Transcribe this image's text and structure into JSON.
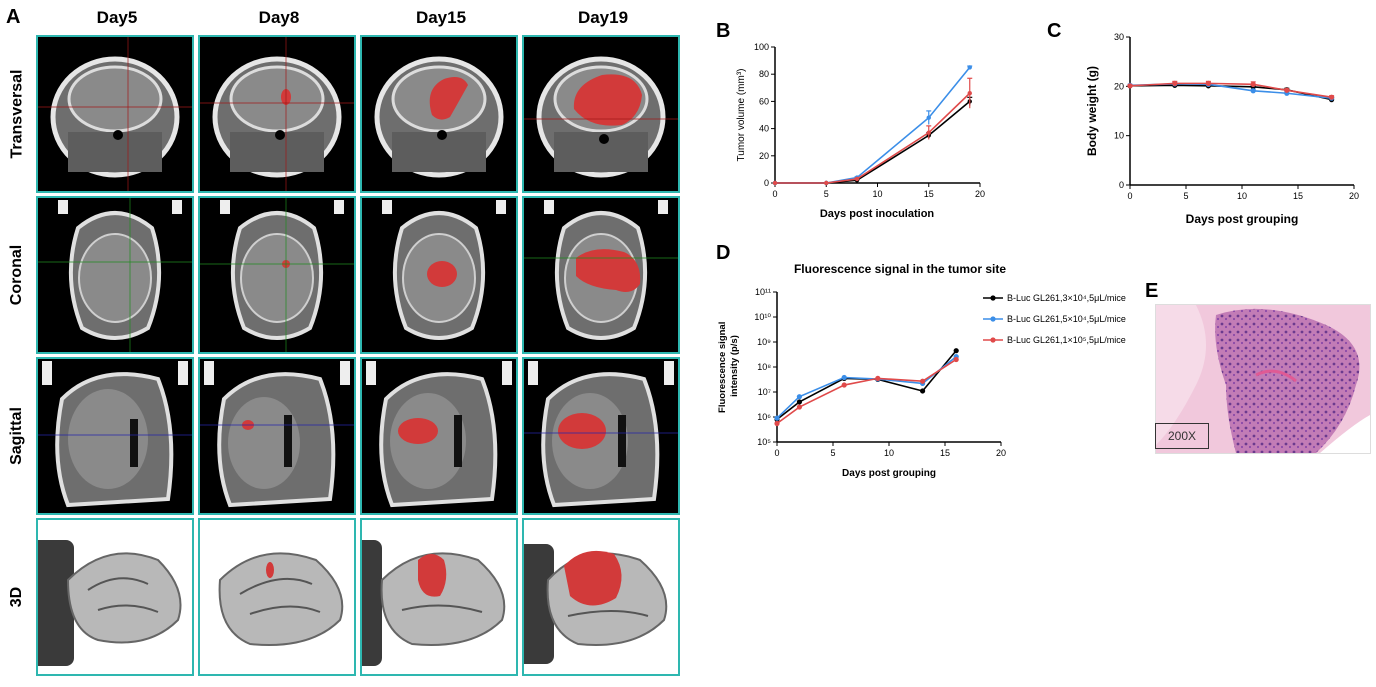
{
  "panels": {
    "a": "A",
    "b": "B",
    "c": "C",
    "d": "D",
    "e": "E"
  },
  "panel_a": {
    "columns": [
      "Day5",
      "Day8",
      "Day15",
      "Day19"
    ],
    "rows": [
      "Transversal",
      "Coronal",
      "Sagittal",
      "3D"
    ],
    "tumor_color": "#d23a3a",
    "frame_color": "#2eb7b0"
  },
  "panel_e": {
    "scale_label": "200X"
  },
  "chart_data": [
    {
      "id": "B",
      "type": "line",
      "xlabel": "Days post inoculation",
      "ylabel": "Tumor volume (mm³)",
      "xlim": [
        0,
        20
      ],
      "ylim": [
        0,
        100
      ],
      "xticks": [
        0,
        5,
        10,
        15,
        20
      ],
      "yticks": [
        0,
        20,
        40,
        60,
        80,
        100
      ],
      "x": [
        0,
        5,
        8,
        15,
        19
      ],
      "series": [
        {
          "color": "#000000",
          "values": [
            0,
            0,
            2,
            35,
            60
          ],
          "err": [
            0,
            0,
            0.5,
            2,
            3
          ]
        },
        {
          "color": "#3b8ee8",
          "values": [
            0,
            0,
            4,
            48,
            85
          ],
          "err": [
            0,
            0,
            0.5,
            5,
            1
          ]
        },
        {
          "color": "#e04a4a",
          "values": [
            0,
            0,
            3,
            37,
            66
          ],
          "err": [
            0,
            0,
            0.5,
            5,
            11
          ]
        }
      ]
    },
    {
      "id": "C",
      "type": "line",
      "xlabel": "Days post grouping",
      "ylabel": "Body weight (g)",
      "xlim": [
        0,
        20
      ],
      "ylim": [
        0,
        30
      ],
      "xticks": [
        0,
        5,
        10,
        15,
        20
      ],
      "yticks": [
        0,
        10,
        20,
        30
      ],
      "x": [
        0,
        4,
        7,
        11,
        14,
        18
      ],
      "series": [
        {
          "color": "#000000",
          "values": [
            20.1,
            20.2,
            20.1,
            19.9,
            19.3,
            17.3
          ],
          "err": [
            0.2,
            0.3,
            0.3,
            0.3,
            0.3,
            0.4
          ]
        },
        {
          "color": "#3b8ee8",
          "values": [
            20.2,
            20.5,
            20.4,
            19.1,
            18.6,
            17.6
          ],
          "err": [
            0.2,
            0.3,
            0.4,
            0.3,
            0.3,
            0.3
          ]
        },
        {
          "color": "#e04a4a",
          "values": [
            20.1,
            20.6,
            20.6,
            20.4,
            19.2,
            17.8
          ],
          "err": [
            0.2,
            0.4,
            0.4,
            0.5,
            0.3,
            0.3
          ]
        }
      ]
    },
    {
      "id": "D",
      "type": "line",
      "title": "Fluorescence signal in the tumor site",
      "xlabel": "Days post grouping",
      "ylabel": "Fluorescence signal intensity (p/s)",
      "ylabel_lines": [
        "Fluorescence signal",
        "intensity (p/s)"
      ],
      "xlim": [
        0,
        20
      ],
      "ylim_log10": [
        5,
        11
      ],
      "xticks": [
        0,
        5,
        10,
        15,
        20
      ],
      "yticks_log10": [
        5,
        6,
        7,
        8,
        9,
        10,
        11
      ],
      "log_scale_y": true,
      "x": [
        0,
        2,
        6,
        9,
        13,
        16
      ],
      "legend_position": "right",
      "series": [
        {
          "name": "B-Luc GL261,3×10⁴,5μL/mice",
          "color": "#000000",
          "values": [
            800000,
            4000000,
            35000000,
            32000000,
            11000000,
            450000000
          ]
        },
        {
          "name": "B-Luc GL261,5×10⁴,5μL/mice",
          "color": "#3b8ee8",
          "values": [
            900000,
            6500000,
            38000000,
            33000000,
            22000000,
            260000000
          ]
        },
        {
          "name": "B-Luc GL261,1×10⁵,5μL/mice",
          "color": "#e04a4a",
          "values": [
            550000,
            2500000,
            19000000,
            35000000,
            27000000,
            200000000
          ]
        }
      ]
    }
  ]
}
